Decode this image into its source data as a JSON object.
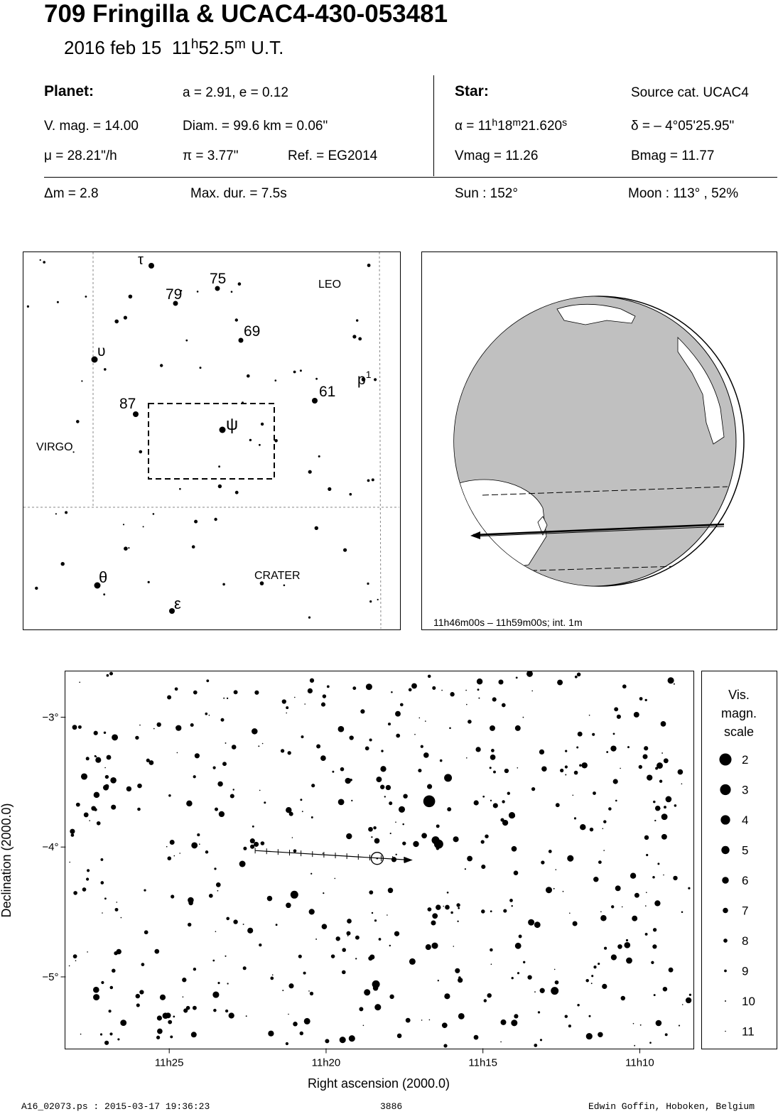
{
  "header": {
    "title": "709 Fringilla  &  UCAC4-430-053481",
    "date": "2016 feb 15",
    "time_h": "11",
    "time_h_sup": "h",
    "time_m": "52.5",
    "time_m_sup": "m",
    "time_suffix": "U.T."
  },
  "planet": {
    "heading": "Planet:",
    "orbit": "a = 2.91, e = 0.12",
    "vmag": "V. mag. = 14.00",
    "diam": "Diam. = 99.6 km = 0.06\"",
    "mu": "μ =  28.21\"/h",
    "pi": "π =  3.77\"",
    "ref": "Ref. = EG2014"
  },
  "star": {
    "heading": "Star:",
    "source": "Source cat.  UCAC4",
    "alpha_prefix": "α = 11",
    "alpha_h": "h",
    "alpha_mid": "18",
    "alpha_m": "m",
    "alpha_sec": "21.620",
    "alpha_s": "s",
    "delta": "δ = – 4°05'25.95\"",
    "vmag": "Vmag = 11.26",
    "bmag": "Bmag = 11.77"
  },
  "summary": {
    "dm": "Δm = 2.8",
    "maxdur": "Max. dur. = 7.5s",
    "sun": "Sun : 152°",
    "moon": "Moon : 113° , 52%"
  },
  "finder": {
    "constellations": [
      "LEO",
      "VIRGO",
      "CRATER"
    ],
    "star_labels": [
      {
        "text": "τ"
      },
      {
        "text": "75"
      },
      {
        "text": "79"
      },
      {
        "text": "69"
      },
      {
        "text": "υ"
      },
      {
        "text": "p"
      },
      {
        "text": "87"
      },
      {
        "text": "61"
      },
      {
        "text": "ψ"
      },
      {
        "text": "θ"
      },
      {
        "text": "ε"
      }
    ],
    "p_sup": "1"
  },
  "globe": {
    "caption": "11h46m00s – 11h59m00s; int.  1m"
  },
  "chart_data": {
    "type": "scatter",
    "title": "",
    "xlabel": "Right ascension (2000.0)",
    "ylabel": "Declination (2000.0)",
    "x_ticks": [
      "11h25",
      "11h20",
      "11h15",
      "11h10"
    ],
    "y_ticks": [
      "−3°",
      "−4°",
      "−5°"
    ],
    "x_tick_values_min": [
      685,
      680,
      675,
      670
    ],
    "y_tick_values_deg": [
      -3,
      -4,
      -5
    ],
    "xlim_min": [
      688.3,
      668.3
    ],
    "ylim_deg": [
      -5.55,
      -2.65
    ],
    "target": {
      "ra_min": 678.36,
      "dec_deg": -4.09
    },
    "path_start": {
      "ra_min": 682.25,
      "dec_deg": -4.03
    },
    "path_end": {
      "ra_min": 677.5,
      "dec_deg": -4.1
    },
    "highlighted_stars": [
      {
        "ra_min": 676.7,
        "dec_deg": -3.65,
        "mag": 3
      },
      {
        "ra_min": 676.1,
        "dec_deg": -3.47,
        "mag": 6
      },
      {
        "ra_min": 676.4,
        "dec_deg": -3.98,
        "mag": 5
      },
      {
        "ra_min": 676.5,
        "dec_deg": -3.95,
        "mag": 6
      },
      {
        "ra_min": 678.4,
        "dec_deg": -5.06,
        "mag": 6
      },
      {
        "ra_min": 681.0,
        "dec_deg": -4.37,
        "mag": 6
      },
      {
        "ra_min": 687.7,
        "dec_deg": -3.46,
        "mag": 7
      },
      {
        "ra_min": 672.2,
        "dec_deg": -4.09,
        "mag": 7
      },
      {
        "ra_min": 672.7,
        "dec_deg": -5.11,
        "mag": 6
      },
      {
        "ra_min": 671.6,
        "dec_deg": -5.46,
        "mag": 7
      },
      {
        "ra_min": 669.0,
        "dec_deg": -2.72,
        "mag": 7
      },
      {
        "ra_min": 680.5,
        "dec_deg": -2.8,
        "mag": 8
      },
      {
        "ra_min": 684.1,
        "dec_deg": -3.3,
        "mag": 8
      },
      {
        "ra_min": 683.5,
        "dec_deg": -5.14,
        "mag": 7
      },
      {
        "ra_min": 685.3,
        "dec_deg": -5.32,
        "mag": 8
      }
    ]
  },
  "legend": {
    "title_lines": [
      "Vis.",
      "magn.",
      "scale"
    ],
    "mags": [
      "2",
      "3",
      "4",
      "5",
      "6",
      "7",
      "8",
      "9",
      "10",
      "11"
    ]
  },
  "footer": {
    "left": "A16_02073.ps : 2015-03-17 19:36:23",
    "center": "3886",
    "right": "Edwin Goffin, Hoboken, Belgium"
  }
}
